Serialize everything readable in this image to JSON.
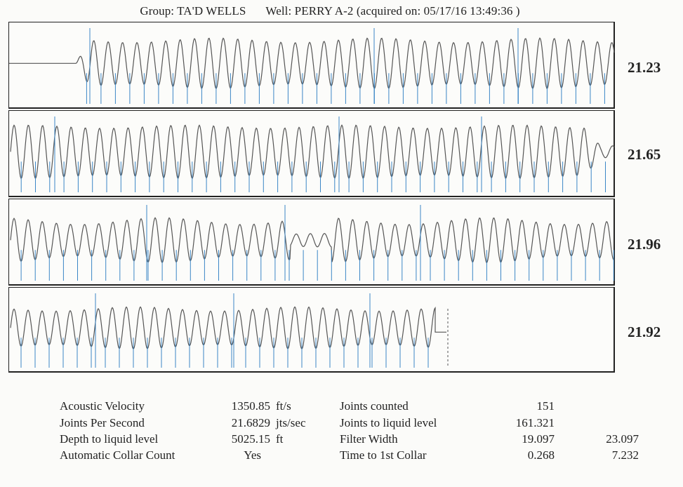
{
  "header": {
    "group_label": "Group: TA'D WELLS",
    "well_label": "Well: PERRY A-2 (acquired on: 05/17/16 13:49:36 )"
  },
  "colors": {
    "trace": "#555555",
    "marker": "#3b86c6",
    "frame": "#222222"
  },
  "panels": [
    {
      "rate": "21.23"
    },
    {
      "rate": "21.65"
    },
    {
      "rate": "21.96"
    },
    {
      "rate": "21.92"
    }
  ],
  "stats": {
    "left": [
      {
        "label": "Acoustic Velocity",
        "value": "1350.85",
        "unit": "ft/s"
      },
      {
        "label": "Joints Per Second",
        "value": "21.6829",
        "unit": "jts/sec"
      },
      {
        "label": "Depth to liquid level",
        "value": "5025.15",
        "unit": "ft"
      },
      {
        "label": "Automatic Collar Count",
        "value": "Yes",
        "unit": ""
      }
    ],
    "right": [
      {
        "label": "Joints counted",
        "value": "151",
        "extra": ""
      },
      {
        "label": "Joints to liquid level",
        "value": "161.321",
        "extra": ""
      },
      {
        "label": "Filter Width",
        "value": "19.097",
        "extra": "23.097"
      },
      {
        "label": "Time to 1st Collar",
        "value": "0.268",
        "extra": "7.232"
      }
    ]
  }
}
